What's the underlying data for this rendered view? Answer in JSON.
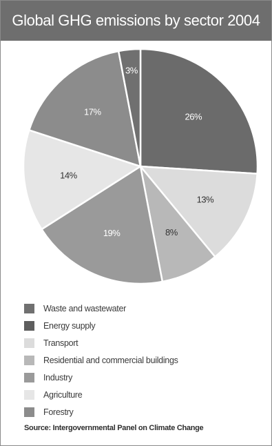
{
  "title": "Global GHG emissions by sector 2004",
  "source": "Source: Intergovernmental Panel on Climate Change",
  "chart_data": {
    "type": "pie",
    "title": "Global GHG emissions by sector 2004",
    "slices": [
      {
        "label": "Energy supply",
        "value": 26,
        "value_label": "26%",
        "color": "#6b6b6b",
        "text_color": "#ffffff"
      },
      {
        "label": "Transport",
        "value": 13,
        "value_label": "13%",
        "color": "#dcdcdc",
        "text_color": "#333333"
      },
      {
        "label": "Residential and commercial buildings",
        "value": 8,
        "value_label": "8%",
        "color": "#b8b8b8",
        "text_color": "#333333"
      },
      {
        "label": "Industry",
        "value": 19,
        "value_label": "19%",
        "color": "#9a9a9a",
        "text_color": "#ffffff"
      },
      {
        "label": "Agriculture",
        "value": 14,
        "value_label": "14%",
        "color": "#e6e6e6",
        "text_color": "#333333"
      },
      {
        "label": "Forestry",
        "value": 17,
        "value_label": "17%",
        "color": "#8c8c8c",
        "text_color": "#ffffff"
      },
      {
        "label": "Waste and wastewater",
        "value": 3,
        "value_label": "3%",
        "color": "#707070",
        "text_color": "#ffffff"
      }
    ],
    "legend": [
      {
        "label": "Waste and wastewater",
        "color": "#707070"
      },
      {
        "label": "Energy supply",
        "color": "#5e5e5e"
      },
      {
        "label": "Transport",
        "color": "#dcdcdc"
      },
      {
        "label": "Residential and commercial buildings",
        "color": "#b8b8b8"
      },
      {
        "label": "Industry",
        "color": "#9a9a9a"
      },
      {
        "label": "Agriculture",
        "color": "#e6e6e6"
      },
      {
        "label": "Forestry",
        "color": "#8c8c8c"
      }
    ],
    "legend_position": "bottom",
    "start_angle_deg": 0,
    "direction": "clockwise"
  }
}
